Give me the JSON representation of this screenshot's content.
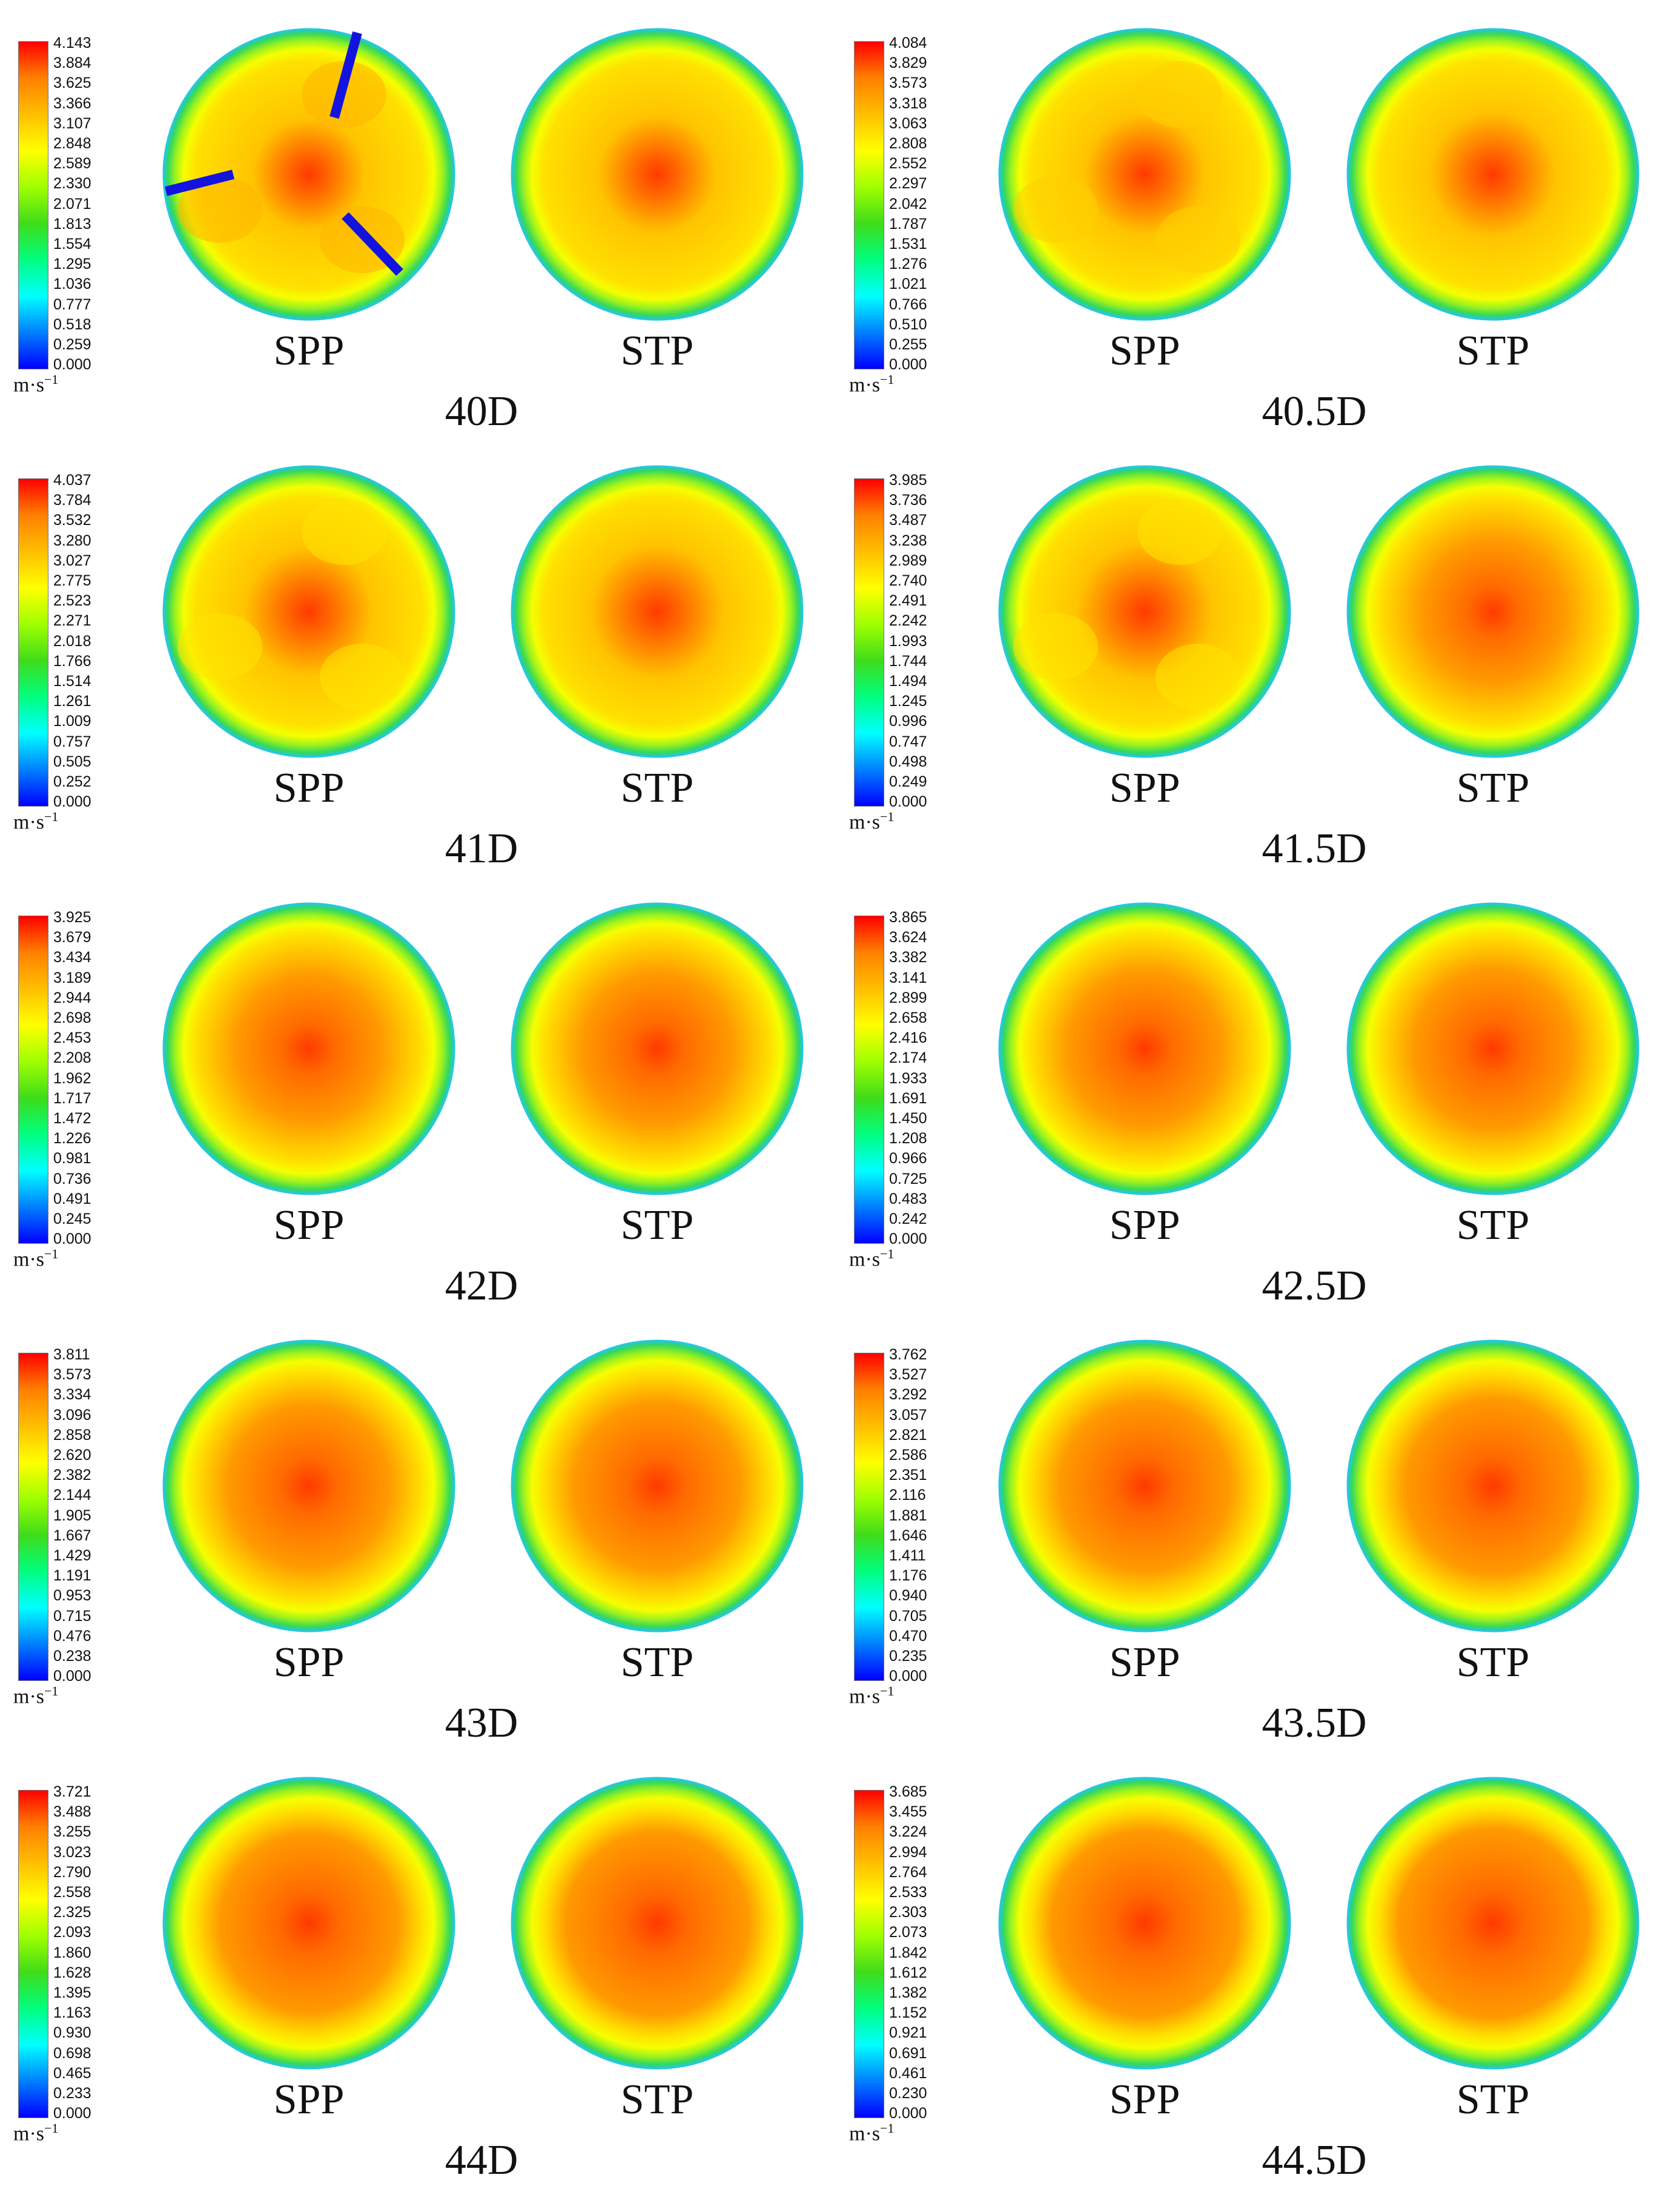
{
  "colors": {
    "scale": [
      "#0000ff",
      "#007fff",
      "#00ffff",
      "#00ff7f",
      "#3fdc1a",
      "#a0ff00",
      "#ffff00",
      "#ffbf00",
      "#ff8000",
      "#ff0000"
    ],
    "blade": "#1313e0"
  },
  "panels": [
    {
      "title": "40D",
      "unit": "m·s",
      "unit_exp": "−1",
      "left_label": "SPP",
      "right_label": "STP",
      "ticks": [
        "4.143",
        "3.884",
        "3.625",
        "3.366",
        "3.107",
        "2.848",
        "2.589",
        "2.330",
        "2.071",
        "1.813",
        "1.554",
        "1.295",
        "1.036",
        "0.777",
        "0.518",
        "0.259",
        "0.000"
      ]
    },
    {
      "title": "40.5D",
      "unit": "m·s",
      "unit_exp": "−1",
      "left_label": "SPP",
      "right_label": "STP",
      "ticks": [
        "4.084",
        "3.829",
        "3.573",
        "3.318",
        "3.063",
        "2.808",
        "2.552",
        "2.297",
        "2.042",
        "1.787",
        "1.531",
        "1.276",
        "1.021",
        "0.766",
        "0.510",
        "0.255",
        "0.000"
      ]
    },
    {
      "title": "41D",
      "unit": "m·s",
      "unit_exp": "−1",
      "left_label": "SPP",
      "right_label": "STP",
      "ticks": [
        "4.037",
        "3.784",
        "3.532",
        "3.280",
        "3.027",
        "2.775",
        "2.523",
        "2.271",
        "2.018",
        "1.766",
        "1.514",
        "1.261",
        "1.009",
        "0.757",
        "0.505",
        "0.252",
        "0.000"
      ]
    },
    {
      "title": "41.5D",
      "unit": "m·s",
      "unit_exp": "−1",
      "left_label": "SPP",
      "right_label": "STP",
      "ticks": [
        "3.985",
        "3.736",
        "3.487",
        "3.238",
        "2.989",
        "2.740",
        "2.491",
        "2.242",
        "1.993",
        "1.744",
        "1.494",
        "1.245",
        "0.996",
        "0.747",
        "0.498",
        "0.249",
        "0.000"
      ]
    },
    {
      "title": "42D",
      "unit": "m·s",
      "unit_exp": "−1",
      "left_label": "SPP",
      "right_label": "STP",
      "ticks": [
        "3.925",
        "3.679",
        "3.434",
        "3.189",
        "2.944",
        "2.698",
        "2.453",
        "2.208",
        "1.962",
        "1.717",
        "1.472",
        "1.226",
        "0.981",
        "0.736",
        "0.491",
        "0.245",
        "0.000"
      ]
    },
    {
      "title": "42.5D",
      "unit": "m·s",
      "unit_exp": "−1",
      "left_label": "SPP",
      "right_label": "STP",
      "ticks": [
        "3.865",
        "3.624",
        "3.382",
        "3.141",
        "2.899",
        "2.658",
        "2.416",
        "2.174",
        "1.933",
        "1.691",
        "1.450",
        "1.208",
        "0.966",
        "0.725",
        "0.483",
        "0.242",
        "0.000"
      ]
    },
    {
      "title": "43D",
      "unit": "m·s",
      "unit_exp": "−1",
      "left_label": "SPP",
      "right_label": "STP",
      "ticks": [
        "3.811",
        "3.573",
        "3.334",
        "3.096",
        "2.858",
        "2.620",
        "2.382",
        "2.144",
        "1.905",
        "1.667",
        "1.429",
        "1.191",
        "0.953",
        "0.715",
        "0.476",
        "0.238",
        "0.000"
      ]
    },
    {
      "title": "43.5D",
      "unit": "m·s",
      "unit_exp": "−1",
      "left_label": "SPP",
      "right_label": "STP",
      "ticks": [
        "3.762",
        "3.527",
        "3.292",
        "3.057",
        "2.821",
        "2.586",
        "2.351",
        "2.116",
        "1.881",
        "1.646",
        "1.411",
        "1.176",
        "0.940",
        "0.705",
        "0.470",
        "0.235",
        "0.000"
      ]
    },
    {
      "title": "44D",
      "unit": "m·s",
      "unit_exp": "−1",
      "left_label": "SPP",
      "right_label": "STP",
      "ticks": [
        "3.721",
        "3.488",
        "3.255",
        "3.023",
        "2.790",
        "2.558",
        "2.325",
        "2.093",
        "1.860",
        "1.628",
        "1.395",
        "1.163",
        "0.930",
        "0.698",
        "0.465",
        "0.233",
        "0.000"
      ]
    },
    {
      "title": "44.5D",
      "unit": "m·s",
      "unit_exp": "−1",
      "left_label": "SPP",
      "right_label": "STP",
      "ticks": [
        "3.685",
        "3.455",
        "3.224",
        "2.994",
        "2.764",
        "2.533",
        "2.303",
        "2.073",
        "1.842",
        "1.612",
        "1.382",
        "1.152",
        "0.921",
        "0.691",
        "0.461",
        "0.230",
        "0.000"
      ]
    }
  ]
}
